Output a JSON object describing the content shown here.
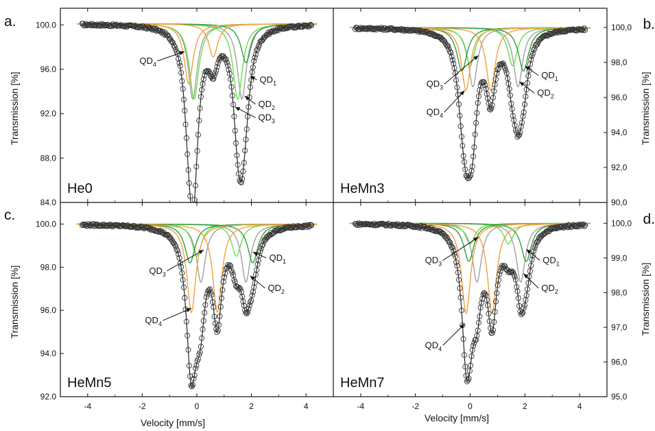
{
  "figure": {
    "xlabel_left": "Velocity [mm/s]",
    "xlabel_right": "Velocity [mm/s]",
    "ylabel_left": "Transmission [%]",
    "ylabel_right": "Transmission [%]"
  },
  "colors": {
    "data_marker": "#333333",
    "fit_total": "#222222",
    "QD1": "#2f9e3a",
    "QD2": "#a0a0a0",
    "QD3": "#66e04a",
    "QD4": "#f2a040"
  },
  "chart_data": [
    {
      "type": "scatter",
      "panel_letter": "a.",
      "sample_label": "He0",
      "xlim": [
        -5,
        5
      ],
      "x_ticks": [
        -4,
        -2,
        0,
        2,
        4
      ],
      "ylim": [
        84.0,
        101.5
      ],
      "y_ticks": [
        100.0,
        96.0,
        92.0,
        88.0,
        84.0
      ],
      "y_tick_labels": [
        "100.0",
        "96.0",
        "92.0",
        "88.0",
        "84.0"
      ],
      "y_axis_side": "left",
      "baseline": 100.1,
      "components": [
        {
          "name": "QD1",
          "center": 1.8,
          "depth": 3.5,
          "width": 0.45
        },
        {
          "name": "QD2",
          "center": -0.15,
          "depth": 6.8,
          "width": 0.4
        },
        {
          "name": "QD2",
          "center": 1.65,
          "depth": 6.8,
          "width": 0.4
        },
        {
          "name": "QD3",
          "center": -0.1,
          "depth": 6.8,
          "width": 0.42
        },
        {
          "name": "QD3",
          "center": 1.5,
          "depth": 6.8,
          "width": 0.42
        },
        {
          "name": "QD4",
          "center": -0.3,
          "depth": 5.4,
          "width": 0.4
        },
        {
          "name": "QD4",
          "center": 0.6,
          "depth": 3.0,
          "width": 0.4
        }
      ],
      "annotations": [
        {
          "base": "QD",
          "sub": "4",
          "x": -2.1,
          "y": 96.5,
          "ax": -0.45,
          "ay": 97.6
        },
        {
          "base": "QD",
          "sub": "1",
          "x": 2.3,
          "y": 94.8,
          "ax": 1.95,
          "ay": 95.4
        },
        {
          "base": "QD",
          "sub": "2",
          "x": 2.25,
          "y": 92.6,
          "ax": 1.75,
          "ay": 93.6
        },
        {
          "base": "QD",
          "sub": "3",
          "x": 2.25,
          "y": 91.4,
          "ax": 1.4,
          "ay": 92.6
        }
      ]
    },
    {
      "type": "scatter",
      "panel_letter": "b.",
      "sample_label": "HeMn3",
      "xlim": [
        -5,
        5
      ],
      "x_ticks": [
        -4,
        -2,
        0,
        2,
        4
      ],
      "ylim": [
        90.0,
        101.1
      ],
      "y_ticks": [
        100.0,
        98.0,
        96.0,
        94.0,
        92.0,
        90.0
      ],
      "y_tick_labels": [
        "100,0",
        "98,0",
        "96,0",
        "94,0",
        "92,0",
        "90,0"
      ],
      "y_axis_side": "right",
      "baseline": 100.0,
      "components": [
        {
          "name": "QD1",
          "center": -0.3,
          "depth": 2.5,
          "width": 0.45
        },
        {
          "name": "QD1",
          "center": 1.95,
          "depth": 2.5,
          "width": 0.45
        },
        {
          "name": "QD2",
          "center": 0.1,
          "depth": 3.4,
          "width": 0.4
        },
        {
          "name": "QD2",
          "center": 1.75,
          "depth": 3.4,
          "width": 0.4
        },
        {
          "name": "QD3",
          "center": 0.0,
          "depth": 2.2,
          "width": 0.42
        },
        {
          "name": "QD3",
          "center": 1.55,
          "depth": 2.2,
          "width": 0.42
        },
        {
          "name": "QD4",
          "center": -0.15,
          "depth": 3.6,
          "width": 0.4
        },
        {
          "name": "QD4",
          "center": 0.75,
          "depth": 3.6,
          "width": 0.4
        }
      ],
      "annotations": [
        {
          "base": "QD",
          "sub": "3",
          "x": -1.6,
          "y": 96.6,
          "ax": 0.3,
          "ay": 98.4
        },
        {
          "base": "QD",
          "sub": "4",
          "x": -1.6,
          "y": 95.0,
          "ax": -0.2,
          "ay": 96.4
        },
        {
          "base": "QD",
          "sub": "1",
          "x": 2.6,
          "y": 97.1,
          "ax": 2.0,
          "ay": 97.8
        },
        {
          "base": "QD",
          "sub": "2",
          "x": 2.45,
          "y": 96.1,
          "ax": 1.8,
          "ay": 96.9
        }
      ]
    },
    {
      "type": "scatter",
      "panel_letter": "c.",
      "sample_label": "HeMn5",
      "xlim": [
        -5,
        5
      ],
      "x_ticks": [
        -4,
        -2,
        0,
        2,
        4
      ],
      "ylim": [
        92.0,
        101.0
      ],
      "y_ticks": [
        100.0,
        98.0,
        96.0,
        94.0,
        92.0
      ],
      "y_tick_labels": [
        "100.0",
        "98.0",
        "96.0",
        "94.0",
        "92.0"
      ],
      "y_axis_side": "left",
      "baseline": 100.0,
      "components": [
        {
          "name": "QD1",
          "center": -0.25,
          "depth": 1.8,
          "width": 0.45
        },
        {
          "name": "QD1",
          "center": 2.05,
          "depth": 1.8,
          "width": 0.45
        },
        {
          "name": "QD2",
          "center": 0.15,
          "depth": 2.7,
          "width": 0.4
        },
        {
          "name": "QD2",
          "center": 1.8,
          "depth": 2.7,
          "width": 0.4
        },
        {
          "name": "QD3",
          "center": 0.0,
          "depth": 1.5,
          "width": 0.42
        },
        {
          "name": "QD3",
          "center": 1.45,
          "depth": 1.5,
          "width": 0.42
        },
        {
          "name": "QD4",
          "center": -0.2,
          "depth": 4.1,
          "width": 0.4
        },
        {
          "name": "QD4",
          "center": 0.75,
          "depth": 4.1,
          "width": 0.4
        }
      ],
      "annotations": [
        {
          "base": "QD",
          "sub": "3",
          "x": -1.75,
          "y": 97.7,
          "ax": 0.25,
          "ay": 98.8
        },
        {
          "base": "QD",
          "sub": "4",
          "x": -1.9,
          "y": 95.4,
          "ax": -0.2,
          "ay": 96.1
        },
        {
          "base": "QD",
          "sub": "1",
          "x": 2.65,
          "y": 98.3,
          "ax": 2.05,
          "ay": 98.7
        },
        {
          "base": "QD",
          "sub": "2",
          "x": 2.6,
          "y": 96.9,
          "ax": 1.95,
          "ay": 97.6
        }
      ]
    },
    {
      "type": "scatter",
      "panel_letter": "d.",
      "sample_label": "HeMn7",
      "xlim": [
        -5,
        5
      ],
      "x_ticks": [
        -4,
        -2,
        0,
        2,
        4
      ],
      "ylim": [
        95.0,
        100.6
      ],
      "y_ticks": [
        100.0,
        99.0,
        98.0,
        97.0,
        96.0,
        95.0
      ],
      "y_tick_labels": [
        "100,0",
        "99,0",
        "98,0",
        "97,0",
        "96,0",
        "95,0"
      ],
      "y_axis_side": "right",
      "baseline": 100.0,
      "components": [
        {
          "name": "QD1",
          "center": -0.05,
          "depth": 1.1,
          "width": 0.45
        },
        {
          "name": "QD1",
          "center": 2.05,
          "depth": 1.1,
          "width": 0.45
        },
        {
          "name": "QD2",
          "center": 0.25,
          "depth": 1.7,
          "width": 0.4
        },
        {
          "name": "QD2",
          "center": 1.85,
          "depth": 1.7,
          "width": 0.4
        },
        {
          "name": "QD3",
          "center": 0.0,
          "depth": 0.6,
          "width": 0.42
        },
        {
          "name": "QD3",
          "center": 1.4,
          "depth": 0.6,
          "width": 0.42
        },
        {
          "name": "QD4",
          "center": -0.15,
          "depth": 2.6,
          "width": 0.4
        },
        {
          "name": "QD4",
          "center": 0.8,
          "depth": 2.6,
          "width": 0.4
        }
      ],
      "annotations": [
        {
          "base": "QD",
          "sub": "3",
          "x": -1.65,
          "y": 98.85,
          "ax": 0.3,
          "ay": 99.6
        },
        {
          "base": "QD",
          "sub": "4",
          "x": -1.65,
          "y": 96.4,
          "ax": -0.2,
          "ay": 97.1
        },
        {
          "base": "QD",
          "sub": "1",
          "x": 2.65,
          "y": 98.85,
          "ax": 2.05,
          "ay": 99.25
        },
        {
          "base": "QD",
          "sub": "2",
          "x": 2.6,
          "y": 98.05,
          "ax": 1.95,
          "ay": 98.55
        }
      ]
    }
  ]
}
